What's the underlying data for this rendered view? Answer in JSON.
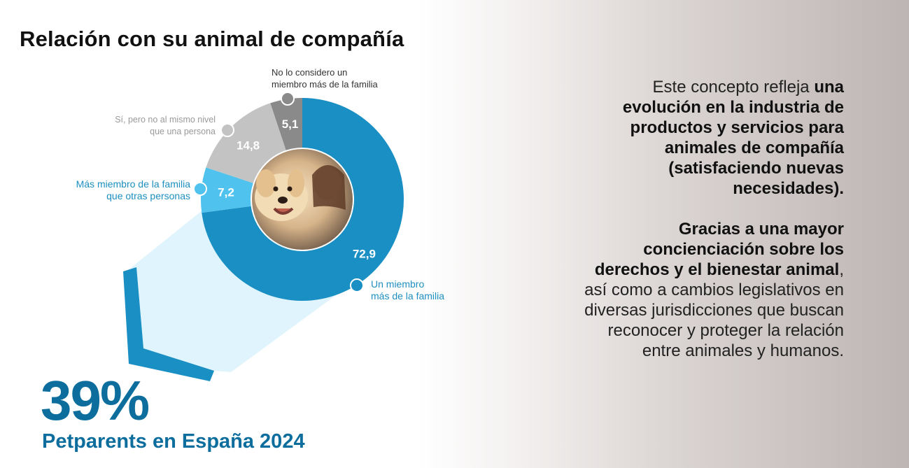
{
  "title": "Relación con su animal de compañía",
  "chart_data": {
    "type": "pie",
    "title": "Relación con su animal de compañía",
    "unit": "%",
    "slices": [
      {
        "label": "Un miembro más de la familia",
        "value": 72.9,
        "display": "72,9",
        "color": "#1a8fc4"
      },
      {
        "label": "Más miembro de la familia que otras personas",
        "value": 7.2,
        "display": "7,2",
        "color": "#4fc3ee"
      },
      {
        "label": "Sí, pero no al mismo nivel que una persona",
        "value": 14.8,
        "display": "14,8",
        "color": "#c3c3c3"
      },
      {
        "label": "No lo considero un miembro más de la familia",
        "value": 5.1,
        "display": "5,1",
        "color": "#8a8a8a"
      }
    ],
    "legend_lines": {
      "nolo": [
        "No lo considero un",
        "miembro más de la familia"
      ],
      "si": [
        "Sí, pero no al mismo nivel",
        "que una persona"
      ],
      "mas": [
        "Más miembro de la familia",
        "que otras personas"
      ],
      "un": [
        "Un miembro",
        "más de la familia"
      ]
    }
  },
  "highlight": {
    "value": "39%",
    "caption": "Petparents en España 2024"
  },
  "right_text": {
    "p1_normal": "Este concepto refleja ",
    "p1_bold": "una evolución en la industria de productos y servicios para animales de compañía (satisfaciendo nuevas necesidades).",
    "p2_bold": "Gracias a una mayor concienciación sobre los derechos y el bienestar animal",
    "p2_normal": ", así como a cambios legislativos en diversas jurisdicciones que buscan reconocer y proteger la relación entre animales y humanos."
  },
  "colors": {
    "accent_blue": "#0d6e9e",
    "ring_blue": "#1a8fc4",
    "light_blue": "#4fc3ee",
    "callout_fill": "#dff4fc"
  }
}
